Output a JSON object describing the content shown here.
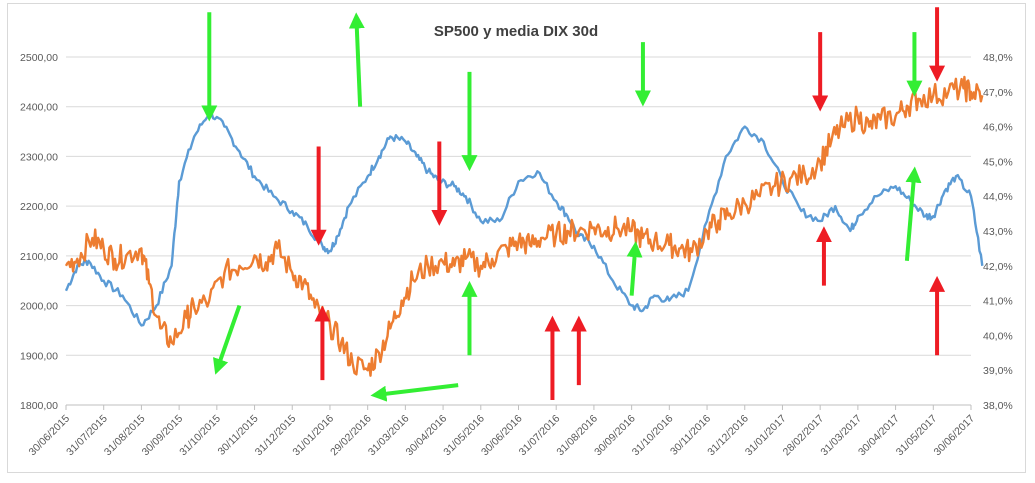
{
  "chart_data": {
    "type": "line",
    "title": "SP500 y media DIX 30d",
    "grid": true,
    "legend": "none",
    "y_left": {
      "ticks": [
        "1800,00",
        "1900,00",
        "2000,00",
        "2100,00",
        "2200,00",
        "2300,00",
        "2400,00",
        "2500,00"
      ],
      "ylim": [
        1800,
        2500
      ]
    },
    "y_right": {
      "ticks": [
        "38,0%",
        "39,0%",
        "40,0%",
        "41,0%",
        "42,0%",
        "43,0%",
        "44,0%",
        "45,0%",
        "46,0%",
        "47,0%",
        "48,0%"
      ],
      "ylim": [
        38.0,
        48.0
      ]
    },
    "x_ticks": [
      "30/06/2015",
      "31/07/2015",
      "31/08/2015",
      "30/09/2015",
      "31/10/2015",
      "30/11/2015",
      "31/12/2015",
      "31/01/2016",
      "29/02/2016",
      "31/03/2016",
      "30/04/2016",
      "31/05/2016",
      "30/06/2016",
      "31/07/2016",
      "31/08/2016",
      "30/09/2016",
      "31/10/2016",
      "30/11/2016",
      "31/12/2016",
      "31/01/2017",
      "28/02/2017",
      "31/03/2017",
      "30/04/2017",
      "31/05/2017",
      "30/06/2017"
    ],
    "series": [
      {
        "axis": "left",
        "color": "#5b9bd5",
        "x": [
          0,
          0.3,
          0.6,
          1,
          1.5,
          2,
          2.4,
          2.8,
          3,
          3.4,
          3.8,
          4.2,
          4.6,
          5,
          5.5,
          6,
          6.4,
          6.8,
          7,
          7.2,
          7.5,
          8,
          8.3,
          8.6,
          9,
          9.3,
          9.6,
          9.9,
          10.3,
          10.6,
          11,
          11.5,
          12,
          12.5,
          13,
          13.3,
          13.6,
          14,
          14.5,
          15,
          15.3,
          15.6,
          16,
          16.5,
          17,
          17.5,
          18,
          18.5,
          19,
          19.5,
          20,
          20.4,
          20.8,
          21,
          21.5,
          22,
          22.4,
          22.8,
          23,
          23.3,
          23.6,
          24,
          24.3
        ],
        "values": [
          2030,
          2080,
          2090,
          2050,
          2020,
          1960,
          2000,
          2080,
          2250,
          2340,
          2390,
          2360,
          2310,
          2260,
          2220,
          2190,
          2160,
          2120,
          2110,
          2140,
          2200,
          2260,
          2300,
          2340,
          2330,
          2300,
          2270,
          2250,
          2240,
          2220,
          2170,
          2170,
          2250,
          2270,
          2210,
          2180,
          2140,
          2120,
          2050,
          2000,
          1990,
          2020,
          2010,
          2030,
          2170,
          2300,
          2360,
          2330,
          2250,
          2190,
          2170,
          2200,
          2150,
          2180,
          2220,
          2240,
          2210,
          2180,
          2180,
          2230,
          2260,
          2220,
          2080
        ]
      },
      {
        "axis": "right",
        "color": "#ed7d31",
        "x": [
          0,
          0.3,
          0.7,
          1,
          1.3,
          1.6,
          2,
          2.2,
          2.5,
          2.8,
          3.2,
          3.4,
          3.8,
          4.2,
          4.6,
          5,
          5.3,
          5.6,
          6,
          6.3,
          6.6,
          7,
          7.3,
          7.6,
          8,
          8.3,
          8.6,
          8.9,
          9.2,
          9.6,
          10,
          10.3,
          10.6,
          11,
          11.3,
          11.7,
          12,
          12.3,
          12.6,
          13,
          13.3,
          13.6,
          14,
          14.3,
          14.6,
          15,
          15.3,
          15.6,
          16,
          16.3,
          16.6,
          17,
          17.3,
          17.6,
          18,
          18.4,
          18.8,
          19.2,
          19.6,
          20,
          20.3,
          20.6,
          21,
          21.3,
          21.6,
          22,
          22.3,
          22.6,
          23,
          23.4,
          23.8,
          24,
          24.3
        ],
        "values": [
          42.0,
          42.2,
          42.8,
          42.5,
          42.2,
          42.3,
          42.5,
          41.5,
          40.2,
          39.8,
          40.5,
          40.8,
          41.0,
          41.8,
          42.0,
          42.3,
          42.1,
          42.5,
          41.8,
          41.5,
          40.8,
          40.3,
          39.8,
          39.2,
          39.0,
          39.5,
          40.2,
          41.0,
          41.6,
          42.0,
          42.1,
          42.0,
          42.2,
          42.0,
          42.2,
          42.5,
          42.7,
          42.6,
          42.8,
          42.9,
          43.0,
          43.0,
          43.1,
          43.0,
          43.1,
          43.0,
          42.8,
          42.7,
          42.6,
          42.5,
          42.4,
          43.0,
          43.3,
          43.5,
          43.8,
          44.0,
          44.3,
          44.5,
          44.6,
          45.0,
          45.6,
          46.0,
          46.3,
          46.0,
          46.2,
          46.3,
          46.6,
          46.8,
          46.9,
          47.0,
          47.1,
          47.0,
          46.9
        ]
      }
    ],
    "annotations": {
      "green_arrows": [
        {
          "from": [
            3.8,
            7.9
          ],
          "to": [
            3.8,
            5.8
          ]
        },
        {
          "from": [
            4.6,
            2.0
          ],
          "to": [
            4.0,
            0.7
          ]
        },
        {
          "from": [
            7.8,
            6.0
          ],
          "to": [
            7.7,
            7.8
          ]
        },
        {
          "from": [
            10.4,
            0.4
          ],
          "to": [
            8.2,
            0.2
          ]
        },
        {
          "from": [
            10.7,
            6.7
          ],
          "to": [
            10.7,
            4.8
          ]
        },
        {
          "from": [
            10.7,
            1.0
          ],
          "to": [
            10.7,
            2.4
          ]
        },
        {
          "from": [
            15.3,
            7.3
          ],
          "to": [
            15.3,
            6.1
          ]
        },
        {
          "from": [
            15.0,
            2.2
          ],
          "to": [
            15.1,
            3.2
          ]
        },
        {
          "from": [
            22.5,
            7.5
          ],
          "to": [
            22.5,
            6.3
          ]
        },
        {
          "from": [
            22.3,
            2.9
          ],
          "to": [
            22.5,
            4.7
          ]
        }
      ],
      "red_arrows": [
        {
          "from": [
            6.7,
            5.2
          ],
          "to": [
            6.7,
            3.3
          ]
        },
        {
          "from": [
            6.8,
            0.5
          ],
          "to": [
            6.8,
            1.9
          ]
        },
        {
          "from": [
            9.9,
            5.3
          ],
          "to": [
            9.9,
            3.7
          ]
        },
        {
          "from": [
            12.9,
            0.1
          ],
          "to": [
            12.9,
            1.7
          ]
        },
        {
          "from": [
            13.6,
            0.4
          ],
          "to": [
            13.6,
            1.7
          ]
        },
        {
          "from": [
            20.0,
            7.5
          ],
          "to": [
            20.0,
            6.0
          ]
        },
        {
          "from": [
            20.1,
            2.4
          ],
          "to": [
            20.1,
            3.5
          ]
        },
        {
          "from": [
            23.1,
            8.0
          ],
          "to": [
            23.1,
            6.6
          ]
        },
        {
          "from": [
            23.1,
            1.0
          ],
          "to": [
            23.1,
            2.5
          ]
        }
      ]
    }
  }
}
